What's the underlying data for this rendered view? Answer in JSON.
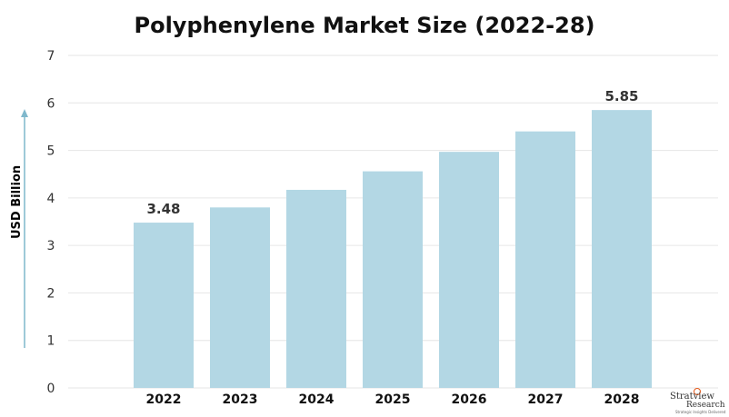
{
  "chart_data": {
    "type": "bar",
    "title": "Polyphenylene Market Size (2022-28)",
    "xlabel": "",
    "ylabel": "USD Billion",
    "categories": [
      "2022",
      "2023",
      "2024",
      "2025",
      "2026",
      "2027",
      "2028"
    ],
    "values": [
      3.48,
      3.8,
      4.17,
      4.56,
      4.97,
      5.4,
      5.85
    ],
    "data_labels": [
      {
        "category": "2022",
        "text": "3.48"
      },
      {
        "category": "2028",
        "text": "5.85"
      }
    ],
    "ylim": [
      0,
      7
    ],
    "yticks": [
      "0",
      "1",
      "2",
      "3",
      "4",
      "5",
      "6",
      "7"
    ],
    "grid": true,
    "legend": "none",
    "bar_color": "#b3d7e4",
    "grid_color": "#e6e6e6",
    "arrow_color": "#7fb8cc"
  },
  "logo": {
    "brand": "Stratview",
    "sub": "Research",
    "tagline": "Strategic Insights Delivered"
  }
}
